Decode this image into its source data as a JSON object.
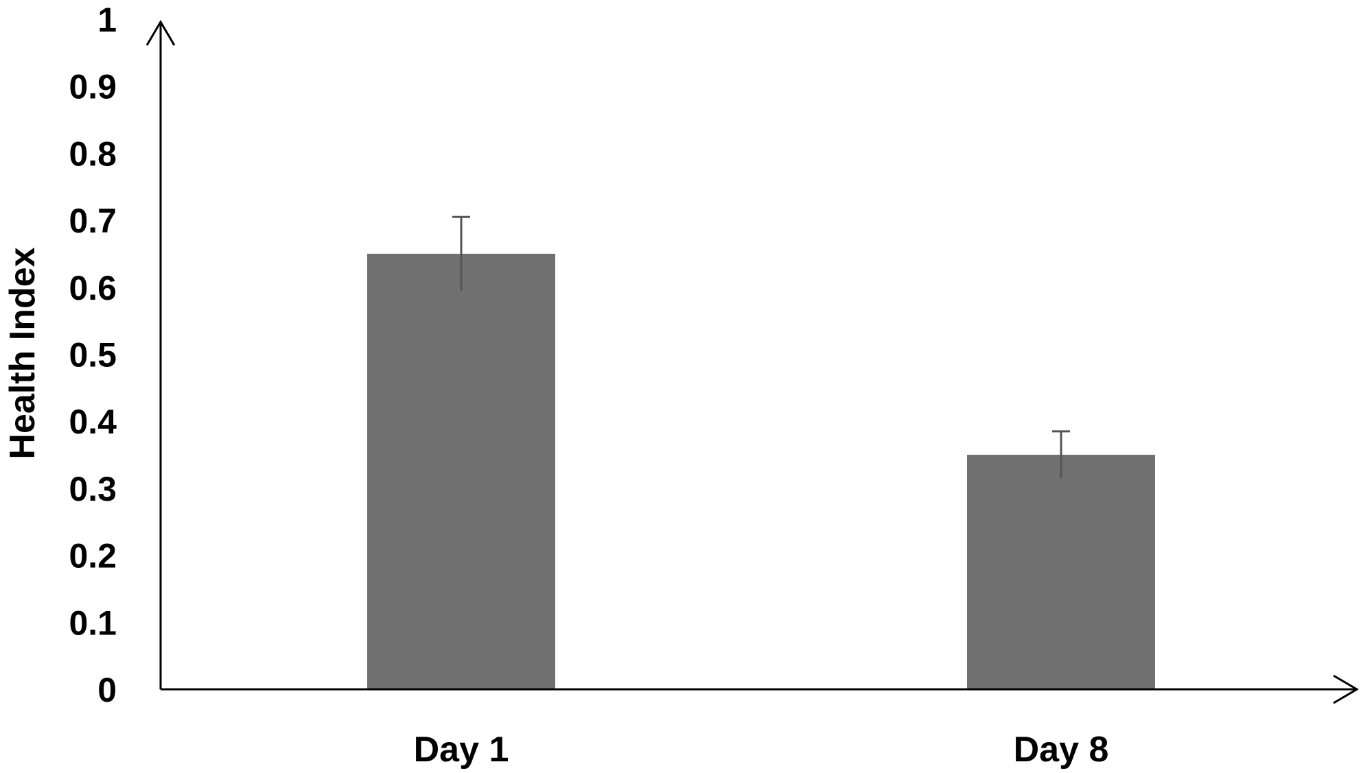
{
  "chart_data": {
    "type": "bar",
    "title": "",
    "xlabel": "",
    "ylabel": "Health Index",
    "categories": [
      "Day 1",
      "Day 8"
    ],
    "values": [
      0.65,
      0.35
    ],
    "error": [
      0.055,
      0.035
    ],
    "ylim": [
      0,
      1
    ],
    "yticks": [
      "0",
      "0.1",
      "0.2",
      "0.3",
      "0.4",
      "0.5",
      "0.6",
      "0.7",
      "0.8",
      "0.9",
      "1"
    ],
    "grid": false,
    "legend": "none",
    "colors": {
      "bar": "#707070",
      "error_bar": "#555555",
      "axis": "#000000"
    }
  }
}
